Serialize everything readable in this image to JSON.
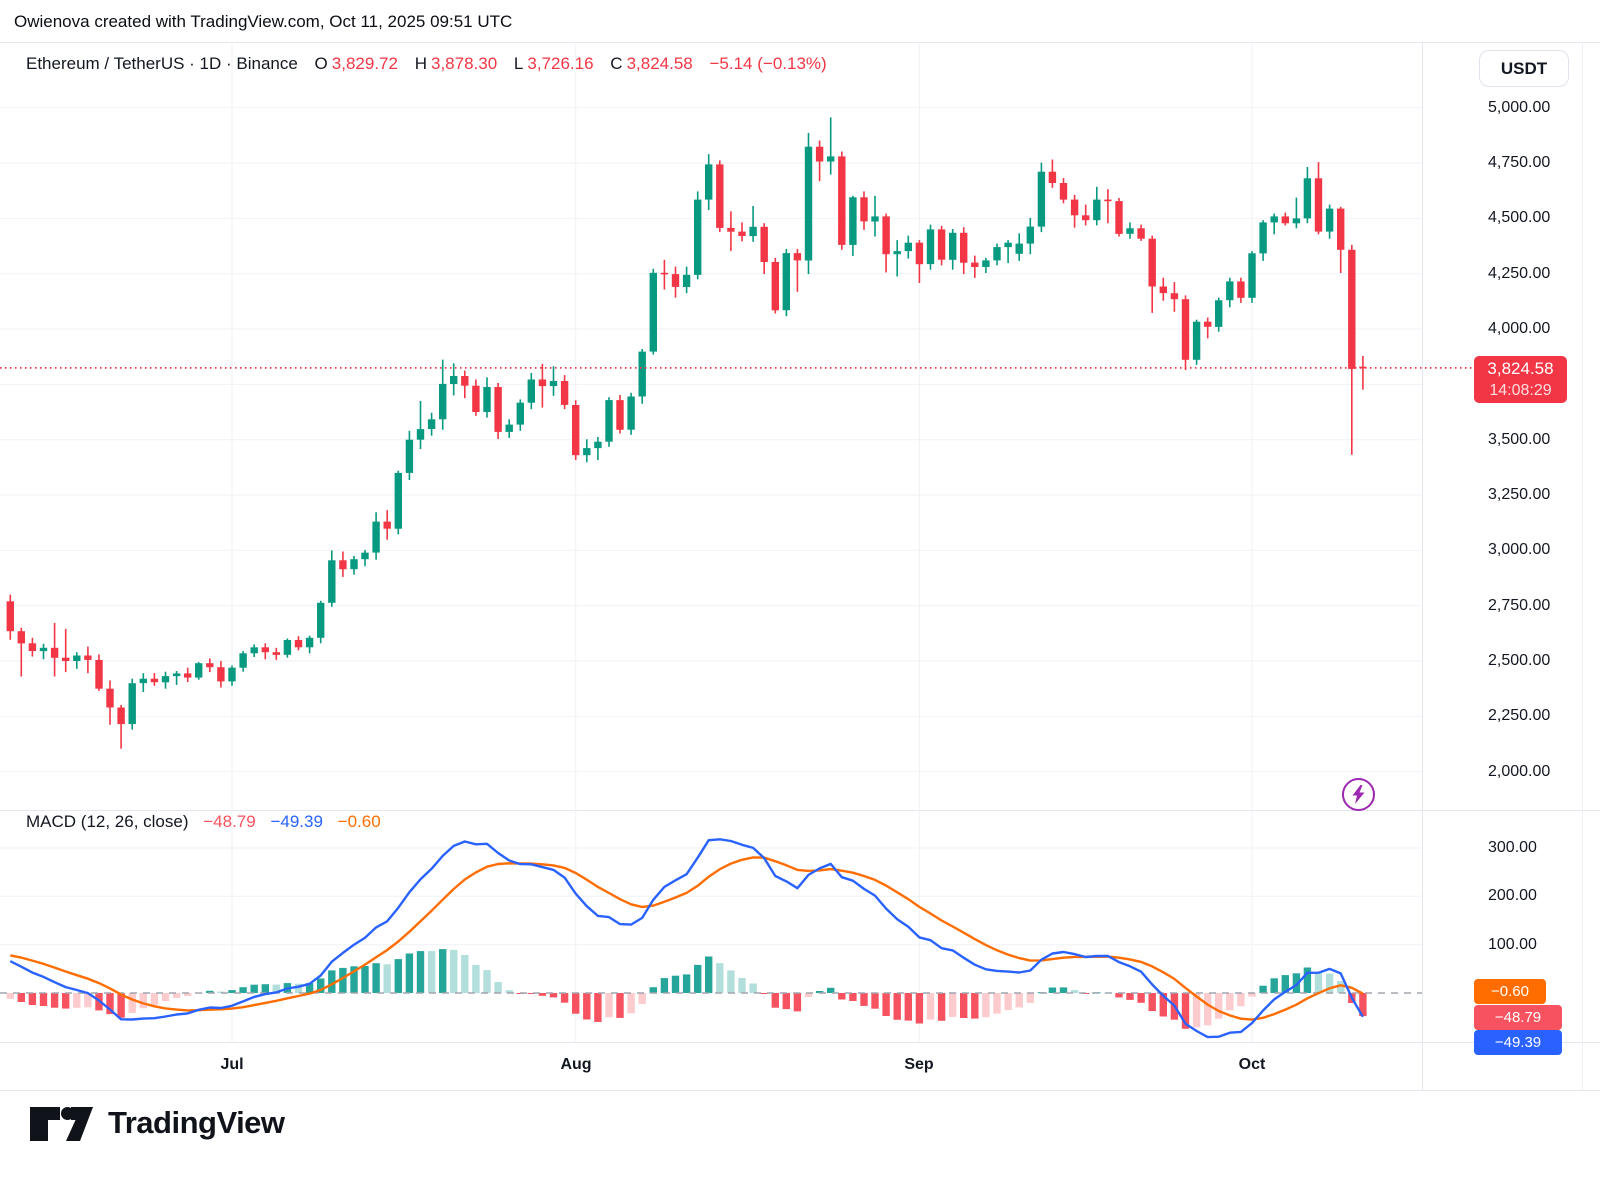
{
  "header": {
    "attribution": "Owienova created with TradingView.com, Oct 11, 2025 09:51 UTC"
  },
  "symbol_bar": {
    "title": "Ethereum / TetherUS · 1D · Binance",
    "ohlc": {
      "o_label": "O",
      "o": "3,829.72",
      "h_label": "H",
      "h": "3,878.30",
      "l_label": "L",
      "l": "3,726.16",
      "c_label": "C",
      "c": "3,824.58"
    },
    "change": "−5.14 (−0.13%)"
  },
  "price_axis": {
    "currency": "USDT",
    "ticks": [
      {
        "price": 5000,
        "label": "5,000.00"
      },
      {
        "price": 4750,
        "label": "4,750.00"
      },
      {
        "price": 4500,
        "label": "4,500.00"
      },
      {
        "price": 4250,
        "label": "4,250.00"
      },
      {
        "price": 4000,
        "label": "4,000.00"
      },
      {
        "price": 3500,
        "label": "3,500.00"
      },
      {
        "price": 3250,
        "label": "3,250.00"
      },
      {
        "price": 3000,
        "label": "3,000.00"
      },
      {
        "price": 2750,
        "label": "2,750.00"
      },
      {
        "price": 2500,
        "label": "2,500.00"
      },
      {
        "price": 2250,
        "label": "2,250.00"
      },
      {
        "price": 2000,
        "label": "2,000.00"
      }
    ],
    "grid_only_levels": [
      3750
    ],
    "current": {
      "price": "3,824.58",
      "countdown": "14:08:29",
      "value": 3824.58
    }
  },
  "macd_panel": {
    "legend": "MACD (12, 26, close)",
    "values": {
      "hist": "−48.79",
      "macd": "−49.39",
      "signal": "−0.60"
    },
    "ticks": [
      {
        "v": 300,
        "label": "300.00"
      },
      {
        "v": 200,
        "label": "200.00"
      },
      {
        "v": 100,
        "label": "100.00"
      }
    ]
  },
  "time_axis": {
    "months": [
      {
        "label": "Jul",
        "index": 20
      },
      {
        "label": "Aug",
        "index": 51
      },
      {
        "label": "Sep",
        "index": 82
      },
      {
        "label": "Oct",
        "index": 112
      }
    ]
  },
  "footer": {
    "brand": "TradingView"
  },
  "colors": {
    "up": "#089981",
    "down": "#f23645",
    "dotted_price": "#f23645",
    "macd_line": "#2962ff",
    "signal_line": "#ff6d00",
    "hist_up_strong": "#26a69a",
    "hist_up_weak": "#b2dfdb",
    "hist_down_strong": "#f7525f",
    "hist_down_weak": "#fccbcd",
    "grid": "#f0f2f6",
    "zero_dash": "#a2a6af",
    "marker_purple": "#9c27b0"
  },
  "chart_data": [
    {
      "type": "candlestick",
      "title": "Ethereum / TetherUS · 1D · Binance",
      "ylim": [
        1965,
        5080
      ],
      "y_ticks": [
        2000,
        2250,
        2500,
        2750,
        3000,
        3250,
        3500,
        3750,
        4000,
        4250,
        4500,
        4750,
        5000
      ],
      "x_months": [
        "Jul",
        "Aug",
        "Sep",
        "Oct"
      ],
      "last_price": 3824.58,
      "candles": [
        [
          "Jun 11",
          2770,
          2800,
          2596,
          2635
        ],
        [
          "Jun 12",
          2635,
          2650,
          2430,
          2580
        ],
        [
          "Jun 13",
          2580,
          2605,
          2520,
          2545
        ],
        [
          "Jun 14",
          2545,
          2578,
          2508,
          2560
        ],
        [
          "Jun 15",
          2560,
          2672,
          2430,
          2515
        ],
        [
          "Jun 16",
          2515,
          2645,
          2450,
          2500
        ],
        [
          "Jun 17",
          2500,
          2540,
          2465,
          2525
        ],
        [
          "Jun 18",
          2525,
          2565,
          2445,
          2505
        ],
        [
          "Jun 19",
          2505,
          2530,
          2365,
          2375
        ],
        [
          "Jun 20",
          2375,
          2412,
          2212,
          2290
        ],
        [
          "Jun 21",
          2290,
          2302,
          2104,
          2215
        ],
        [
          "Jun 22",
          2215,
          2420,
          2190,
          2400
        ],
        [
          "Jun 23",
          2400,
          2445,
          2360,
          2420
        ],
        [
          "Jun 24",
          2420,
          2446,
          2388,
          2404
        ],
        [
          "Jun 25",
          2404,
          2452,
          2375,
          2432
        ],
        [
          "Jun 26",
          2432,
          2455,
          2392,
          2444
        ],
        [
          "Jun 27",
          2444,
          2470,
          2405,
          2425
        ],
        [
          "Jun 28",
          2425,
          2495,
          2415,
          2490
        ],
        [
          "Jun 29",
          2490,
          2512,
          2450,
          2472
        ],
        [
          "Jun 30",
          2472,
          2500,
          2380,
          2408
        ],
        [
          "Jul 1",
          2408,
          2480,
          2388,
          2470
        ],
        [
          "Jul 2",
          2470,
          2545,
          2452,
          2535
        ],
        [
          "Jul 3",
          2535,
          2575,
          2518,
          2562
        ],
        [
          "Jul 4",
          2562,
          2580,
          2508,
          2540
        ],
        [
          "Jul 5",
          2540,
          2560,
          2505,
          2528
        ],
        [
          "Jul 6",
          2528,
          2602,
          2515,
          2595
        ],
        [
          "Jul 7",
          2595,
          2612,
          2548,
          2562
        ],
        [
          "Jul 8",
          2562,
          2615,
          2535,
          2605
        ],
        [
          "Jul 9",
          2605,
          2772,
          2580,
          2763
        ],
        [
          "Jul 10",
          2763,
          3000,
          2745,
          2955
        ],
        [
          "Jul 11",
          2955,
          2995,
          2880,
          2915
        ],
        [
          "Jul 12",
          2915,
          2975,
          2890,
          2960
        ],
        [
          "Jul 13",
          2960,
          3002,
          2928,
          2990
        ],
        [
          "Jul 14",
          2990,
          3172,
          2958,
          3130
        ],
        [
          "Jul 15",
          3130,
          3182,
          3048,
          3098
        ],
        [
          "Jul 16",
          3098,
          3360,
          3072,
          3350
        ],
        [
          "Jul 17",
          3350,
          3540,
          3318,
          3500
        ],
        [
          "Jul 18",
          3500,
          3675,
          3458,
          3548
        ],
        [
          "Jul 19",
          3548,
          3622,
          3518,
          3592
        ],
        [
          "Jul 20",
          3592,
          3862,
          3545,
          3752
        ],
        [
          "Jul 21",
          3752,
          3845,
          3700,
          3788
        ],
        [
          "Jul 22",
          3788,
          3812,
          3688,
          3744
        ],
        [
          "Jul 23",
          3744,
          3772,
          3608,
          3625
        ],
        [
          "Jul 24",
          3625,
          3782,
          3600,
          3738
        ],
        [
          "Jul 25",
          3738,
          3756,
          3503,
          3535
        ],
        [
          "Jul 26",
          3535,
          3592,
          3508,
          3568
        ],
        [
          "Jul 27",
          3568,
          3682,
          3540,
          3667
        ],
        [
          "Jul 28",
          3667,
          3802,
          3638,
          3772
        ],
        [
          "Jul 29",
          3772,
          3843,
          3645,
          3742
        ],
        [
          "Jul 30",
          3742,
          3832,
          3698,
          3765
        ],
        [
          "Jul 31",
          3765,
          3792,
          3638,
          3657
        ],
        [
          "Aug 1",
          3657,
          3678,
          3408,
          3430
        ],
        [
          "Aug 2",
          3430,
          3502,
          3398,
          3462
        ],
        [
          "Aug 3",
          3462,
          3512,
          3408,
          3491
        ],
        [
          "Aug 4",
          3491,
          3692,
          3468,
          3679
        ],
        [
          "Aug 5",
          3679,
          3702,
          3528,
          3545
        ],
        [
          "Aug 6",
          3545,
          3712,
          3522,
          3695
        ],
        [
          "Aug 7",
          3695,
          3910,
          3662,
          3898
        ],
        [
          "Aug 8",
          3898,
          4272,
          3885,
          4254
        ],
        [
          "Aug 9",
          4254,
          4313,
          4178,
          4248
        ],
        [
          "Aug 10",
          4248,
          4282,
          4142,
          4190
        ],
        [
          "Aug 11",
          4190,
          4282,
          4162,
          4245
        ],
        [
          "Aug 12",
          4245,
          4622,
          4225,
          4585
        ],
        [
          "Aug 13",
          4585,
          4790,
          4538,
          4744
        ],
        [
          "Aug 14",
          4744,
          4762,
          4438,
          4457
        ],
        [
          "Aug 15",
          4457,
          4532,
          4353,
          4440
        ],
        [
          "Aug 16",
          4440,
          4482,
          4396,
          4420
        ],
        [
          "Aug 17",
          4420,
          4556,
          4394,
          4462
        ],
        [
          "Aug 18",
          4462,
          4478,
          4248,
          4303
        ],
        [
          "Aug 19",
          4303,
          4322,
          4070,
          4085
        ],
        [
          "Aug 20",
          4085,
          4362,
          4058,
          4343
        ],
        [
          "Aug 21",
          4343,
          4362,
          4168,
          4310
        ],
        [
          "Aug 22",
          4310,
          4886,
          4248,
          4824
        ],
        [
          "Aug 23",
          4824,
          4852,
          4668,
          4757
        ],
        [
          "Aug 24",
          4757,
          4956,
          4698,
          4780
        ],
        [
          "Aug 25",
          4780,
          4802,
          4358,
          4380
        ],
        [
          "Aug 26",
          4380,
          4602,
          4330,
          4595
        ],
        [
          "Aug 27",
          4595,
          4622,
          4448,
          4486
        ],
        [
          "Aug 28",
          4486,
          4602,
          4418,
          4509
        ],
        [
          "Aug 29",
          4509,
          4522,
          4256,
          4338
        ],
        [
          "Aug 30",
          4338,
          4402,
          4238,
          4352
        ],
        [
          "Aug 31",
          4352,
          4422,
          4318,
          4390
        ],
        [
          "Sep 1",
          4390,
          4402,
          4208,
          4293
        ],
        [
          "Sep 2",
          4293,
          4472,
          4268,
          4450
        ],
        [
          "Sep 3",
          4450,
          4466,
          4288,
          4313
        ],
        [
          "Sep 4",
          4313,
          4452,
          4268,
          4435
        ],
        [
          "Sep 5",
          4435,
          4460,
          4248,
          4300
        ],
        [
          "Sep 6",
          4300,
          4332,
          4231,
          4280
        ],
        [
          "Sep 7",
          4280,
          4322,
          4253,
          4310
        ],
        [
          "Sep 8",
          4310,
          4386,
          4288,
          4370
        ],
        [
          "Sep 9",
          4370,
          4402,
          4298,
          4390
        ],
        [
          "Sep 10",
          4340,
          4432,
          4308,
          4386
        ],
        [
          "Sep 11",
          4386,
          4502,
          4338,
          4463
        ],
        [
          "Sep 12",
          4463,
          4752,
          4438,
          4711
        ],
        [
          "Sep 13",
          4711,
          4766,
          4638,
          4660
        ],
        [
          "Sep 14",
          4660,
          4682,
          4568,
          4585
        ],
        [
          "Sep 15",
          4585,
          4606,
          4458,
          4514
        ],
        [
          "Sep 16",
          4514,
          4562,
          4468,
          4492
        ],
        [
          "Sep 17",
          4492,
          4642,
          4468,
          4585
        ],
        [
          "Sep 18",
          4585,
          4632,
          4478,
          4578
        ],
        [
          "Sep 19",
          4578,
          4592,
          4418,
          4430
        ],
        [
          "Sep 20",
          4430,
          4482,
          4408,
          4455
        ],
        [
          "Sep 21",
          4455,
          4472,
          4398,
          4408
        ],
        [
          "Sep 22",
          4408,
          4422,
          4073,
          4192
        ],
        [
          "Sep 23",
          4192,
          4232,
          4128,
          4162
        ],
        [
          "Sep 24",
          4162,
          4212,
          4078,
          4135
        ],
        [
          "Sep 25",
          4135,
          4152,
          3815,
          3861
        ],
        [
          "Sep 26",
          3861,
          4042,
          3838,
          4033
        ],
        [
          "Sep 27",
          4033,
          4052,
          3958,
          4010
        ],
        [
          "Sep 28",
          4010,
          4142,
          3988,
          4130
        ],
        [
          "Sep 29",
          4130,
          4232,
          4098,
          4215
        ],
        [
          "Sep 30",
          4215,
          4232,
          4118,
          4141
        ],
        [
          "Oct 1",
          4141,
          4352,
          4118,
          4342
        ],
        [
          "Oct 2",
          4342,
          4492,
          4308,
          4482
        ],
        [
          "Oct 3",
          4482,
          4522,
          4428,
          4509
        ],
        [
          "Oct 4",
          4509,
          4526,
          4468,
          4478
        ],
        [
          "Oct 5",
          4478,
          4594,
          4455,
          4500
        ],
        [
          "Oct 6",
          4500,
          4732,
          4478,
          4681
        ],
        [
          "Oct 7",
          4681,
          4754,
          4428,
          4440
        ],
        [
          "Oct 8",
          4440,
          4562,
          4408,
          4544
        ],
        [
          "Oct 9",
          4544,
          4552,
          4253,
          4358
        ],
        [
          "Oct 10",
          4358,
          4380,
          3432,
          3820
        ],
        [
          "Oct 11",
          3829.72,
          3878.3,
          3726.16,
          3824.58
        ]
      ]
    },
    {
      "type": "macd",
      "params": [
        12,
        26,
        9
      ],
      "source": "close",
      "derived_from_candles": true,
      "ylim": [
        -110,
        340
      ],
      "y_ticks": [
        100,
        200,
        300
      ],
      "final_values": {
        "histogram": -48.79,
        "macd": -49.39,
        "signal": -0.6
      }
    }
  ]
}
